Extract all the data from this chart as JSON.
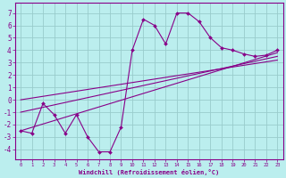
{
  "xlabel": "Windchill (Refroidissement éolien,°C)",
  "xlim": [
    -0.5,
    23.5
  ],
  "ylim": [
    -4.8,
    7.8
  ],
  "yticks": [
    -4,
    -3,
    -2,
    -1,
    0,
    1,
    2,
    3,
    4,
    5,
    6,
    7
  ],
  "xticks": [
    0,
    1,
    2,
    3,
    4,
    5,
    6,
    7,
    8,
    9,
    10,
    11,
    12,
    13,
    14,
    15,
    16,
    17,
    18,
    19,
    20,
    21,
    22,
    23
  ],
  "bg_color": "#bbeeee",
  "grid_color": "#99cccc",
  "line_color": "#880088",
  "spine_color": "#880088",
  "line1_x": [
    0,
    1,
    2,
    3,
    4,
    5,
    6,
    7,
    8,
    9,
    10,
    11,
    12,
    13,
    14,
    15,
    16,
    17,
    18,
    19,
    20,
    21,
    22,
    23
  ],
  "line1_y": [
    -2.5,
    -2.7,
    -0.3,
    -1.2,
    -2.7,
    -1.2,
    -3.0,
    -4.2,
    -4.2,
    -2.2,
    4.0,
    6.5,
    6.0,
    4.5,
    7.0,
    7.0,
    6.3,
    5.0,
    4.2,
    4.0,
    3.7,
    3.5,
    3.6,
    4.0
  ],
  "line2_x": [
    0,
    23
  ],
  "line2_y": [
    -2.5,
    3.8
  ],
  "line3_x": [
    0,
    23
  ],
  "line3_y": [
    -1.0,
    3.5
  ],
  "line4_x": [
    0,
    23
  ],
  "line4_y": [
    0.0,
    3.2
  ]
}
